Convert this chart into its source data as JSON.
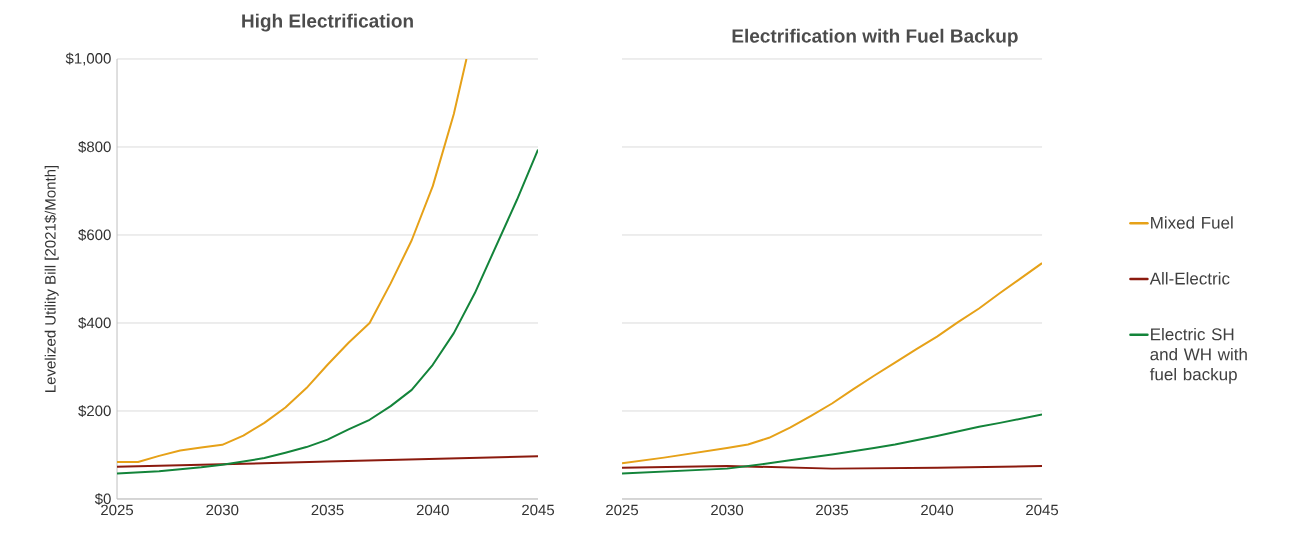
{
  "chart_data": [
    {
      "type": "line",
      "title": "High Electrification",
      "ylabel": "Levelized Utility Bill [2021$/Month]",
      "xlim": [
        2025,
        2045
      ],
      "ylim": [
        0,
        1000
      ],
      "xticks": [
        2025,
        2030,
        2035,
        2040,
        2045
      ],
      "yticks": [
        {
          "value": 0,
          "label": "$0"
        },
        {
          "value": 200,
          "label": "$200"
        },
        {
          "value": 400,
          "label": "$400"
        },
        {
          "value": 600,
          "label": "$600"
        },
        {
          "value": 800,
          "label": "$800"
        },
        {
          "value": 1000,
          "label": "$1,000"
        }
      ],
      "grid": "y",
      "legend": false,
      "marker": "none",
      "line_style": "solid",
      "series": [
        {
          "color": "#e6a118",
          "x": [
            2025,
            2026,
            2027,
            2028,
            2029,
            2030,
            2031,
            2032,
            2033,
            2034,
            2035,
            2036,
            2037,
            2038,
            2039,
            2040,
            2041,
            2041.6
          ],
          "values": [
            84,
            84,
            98,
            110,
            117,
            123,
            144,
            173,
            208,
            252,
            305,
            355,
            400,
            490,
            588,
            711,
            875,
            1000
          ]
        },
        {
          "color": "#8b1a0e",
          "x": [
            2025,
            2030,
            2035,
            2040,
            2045
          ],
          "values": [
            73,
            79,
            85,
            91,
            97
          ]
        },
        {
          "color": "#13843a",
          "x": [
            2025,
            2027,
            2029,
            2030,
            2031,
            2032,
            2033,
            2034,
            2035,
            2036,
            2037,
            2038,
            2039,
            2040,
            2041,
            2042,
            2043,
            2044,
            2045
          ],
          "values": [
            58,
            63,
            72,
            78,
            85,
            93,
            105,
            118,
            135,
            158,
            180,
            211,
            248,
            305,
            377,
            468,
            574,
            680,
            794
          ]
        }
      ]
    },
    {
      "type": "line",
      "title": "Electrification with Fuel Backup",
      "xlim": [
        2025,
        2045
      ],
      "ylim": [
        0,
        1000
      ],
      "xticks": [
        2025,
        2030,
        2035,
        2040,
        2045
      ],
      "yticks": [
        0,
        200,
        400,
        600,
        800,
        1000
      ],
      "tick_labels": "x",
      "grid": "y",
      "legend": "right",
      "marker": "none",
      "line_style": "solid",
      "series": [
        {
          "name": "Mixed Fuel",
          "color": "#e6a118",
          "x": [
            2025,
            2027,
            2030,
            2031,
            2032,
            2033,
            2034,
            2035,
            2036,
            2037,
            2038,
            2039,
            2040,
            2041,
            2042,
            2043,
            2044,
            2045
          ],
          "values": [
            81,
            94,
            116,
            124,
            139,
            162,
            189,
            217,
            249,
            280,
            310,
            340,
            369,
            402,
            433,
            468,
            502,
            536
          ]
        },
        {
          "name": "All-Electric",
          "color": "#8b1a0e",
          "x": [
            2025,
            2030,
            2035,
            2040,
            2045
          ],
          "values": [
            71,
            75,
            69,
            71,
            75
          ]
        },
        {
          "name": "Electric SH and WH with fuel backup",
          "color": "#13843a",
          "x": [
            2025,
            2030,
            2032,
            2033,
            2035,
            2037,
            2038,
            2040,
            2042,
            2043,
            2045
          ],
          "values": [
            58,
            69,
            81,
            88,
            101,
            116,
            124,
            143,
            164,
            173,
            192
          ]
        }
      ]
    }
  ]
}
